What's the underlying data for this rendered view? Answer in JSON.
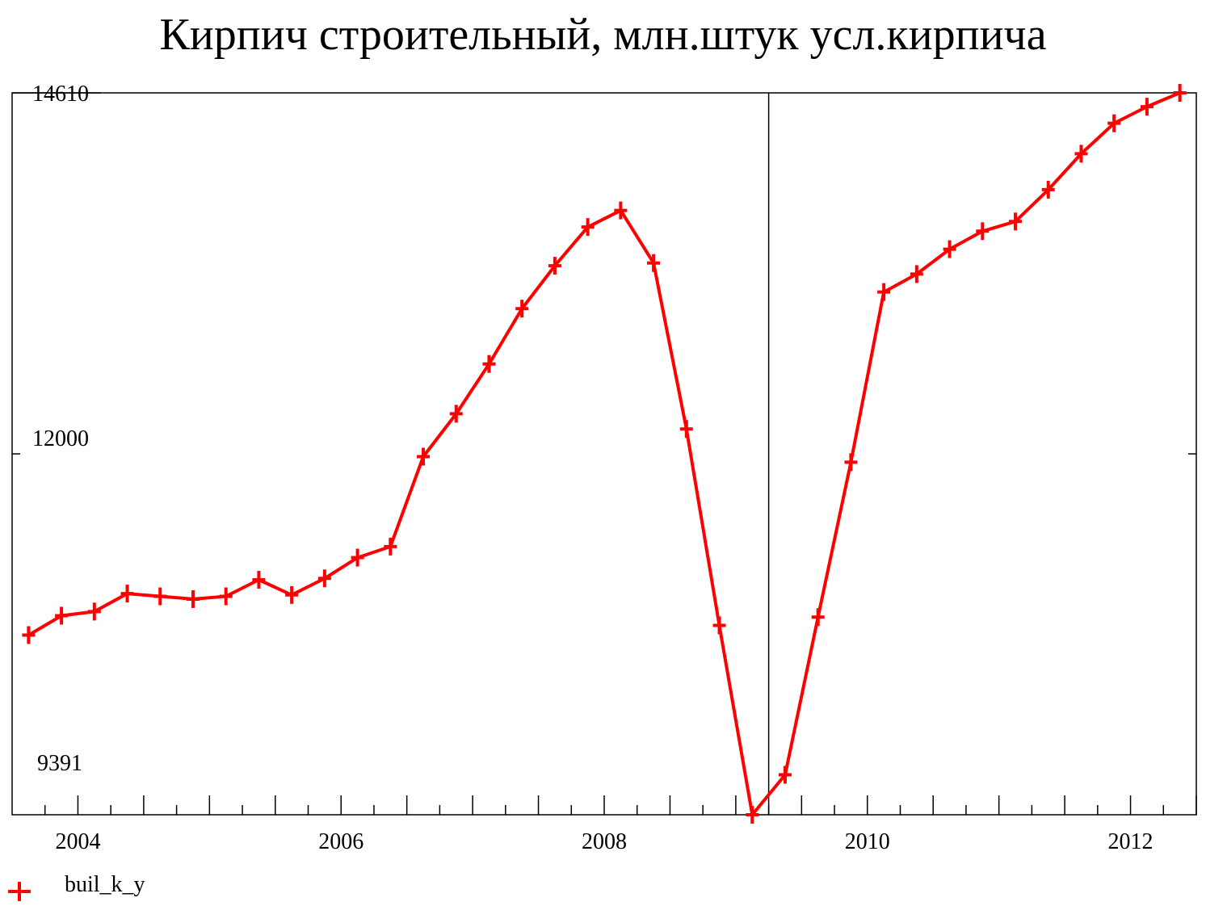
{
  "chart_data": {
    "type": "line",
    "title": "Кирпич строительный, млн.штук усл.кирпича",
    "xlabel": "",
    "ylabel": "",
    "y_tick_labels": [
      "14610",
      "12000",
      "9391"
    ],
    "y_ticks": [
      14610,
      12000,
      9391
    ],
    "ylim": [
      9391,
      14610
    ],
    "x_tick_labels": [
      "2004",
      "2006",
      "2008",
      "2010",
      "2012"
    ],
    "x_ticks": [
      2004,
      2006,
      2008,
      2010,
      2012
    ],
    "xlim": [
      2003.5,
      2012.5
    ],
    "vertical_marker_x": 2009.25,
    "grid": false,
    "legend_position": "bottom-left",
    "series": [
      {
        "name": "buil_k_y",
        "color": "#ff0000",
        "marker": "plus",
        "x": [
          2003.625,
          2003.875,
          2004.125,
          2004.375,
          2004.625,
          2004.875,
          2005.125,
          2005.375,
          2005.625,
          2005.875,
          2006.125,
          2006.375,
          2006.625,
          2006.875,
          2007.125,
          2007.375,
          2007.625,
          2007.875,
          2008.125,
          2008.375,
          2008.625,
          2008.875,
          2009.125,
          2009.375,
          2009.625,
          2009.875,
          2010.125,
          2010.375,
          2010.625,
          2010.875,
          2011.125,
          2011.375,
          2011.625,
          2011.875,
          2012.125,
          2012.375
        ],
        "values": [
          10690,
          10830,
          10860,
          10990,
          10970,
          10950,
          10970,
          11090,
          10980,
          11100,
          11250,
          11330,
          11980,
          12290,
          12650,
          13050,
          13360,
          13640,
          13760,
          13380,
          12180,
          10760,
          9391,
          9680,
          10820,
          11940,
          13170,
          13300,
          13480,
          13610,
          13680,
          13910,
          14170,
          14390,
          14510,
          14610
        ]
      }
    ]
  },
  "legend": {
    "label": "buil_k_y",
    "color": "#ff0000",
    "icon": "plus-icon"
  }
}
